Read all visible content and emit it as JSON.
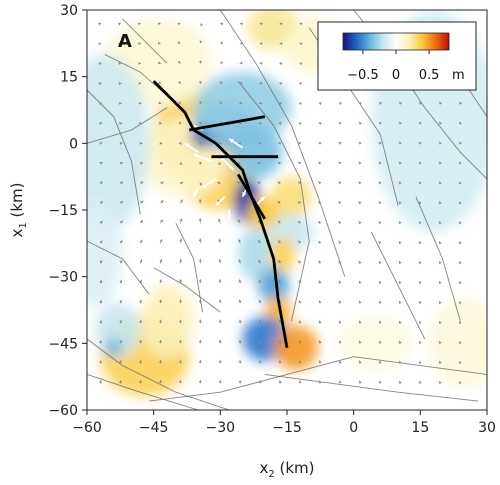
{
  "chart_data": {
    "type": "heatmap",
    "panel_label": "A",
    "xlabel": "x",
    "xlabel_sub": "2",
    "xlabel_unit": " (km)",
    "ylabel": "x",
    "ylabel_sub": "1",
    "ylabel_unit": " (km)",
    "xlim": [
      -60,
      30
    ],
    "ylim": [
      -60,
      30
    ],
    "x_ticks": [
      -60,
      -45,
      -30,
      -15,
      0,
      15,
      30
    ],
    "y_ticks": [
      30,
      15,
      0,
      -15,
      -30,
      -45,
      -60
    ],
    "x_tick_labels": [
      "−60",
      "−45",
      "−30",
      "−15",
      "0",
      "15",
      "30"
    ],
    "y_tick_labels": [
      "30",
      "15",
      "0",
      "−15",
      "−30",
      "−45",
      "−60"
    ],
    "colorbar": {
      "range": [
        -0.8,
        0.8
      ],
      "tick_values": [
        -0.5,
        0,
        0.5
      ],
      "tick_labels": [
        "−0.5",
        "0",
        "0.5"
      ],
      "unit": "m",
      "colors": [
        "#1a1380",
        "#1f64c8",
        "#5fb4dc",
        "#c6e6ee",
        "#ffffff",
        "#fbf1b8",
        "#f8c838",
        "#ef6a0e",
        "#b8100c"
      ]
    },
    "blobs": [
      {
        "x": -34,
        "y": 0,
        "rx": 4.5,
        "ry": 4.5,
        "value": 0.75
      },
      {
        "x": -31,
        "y": -4,
        "rx": 6,
        "ry": 5,
        "value": 0.55
      },
      {
        "x": -37,
        "y": 2,
        "rx": 8,
        "ry": 10,
        "value": 0.4
      },
      {
        "x": -30,
        "y": -9,
        "rx": 8,
        "ry": 6,
        "value": 0.35
      },
      {
        "x": -38,
        "y": -3,
        "rx": 10,
        "ry": 9,
        "value": 0.15
      },
      {
        "x": -34,
        "y": 1.5,
        "rx": 2.5,
        "ry": 2.5,
        "value": -0.8
      },
      {
        "x": -29,
        "y": 4,
        "rx": 7,
        "ry": 5,
        "value": -0.5
      },
      {
        "x": -25,
        "y": 8,
        "rx": 11,
        "ry": 8,
        "value": -0.3
      },
      {
        "x": -22,
        "y": -2,
        "rx": 6,
        "ry": 6,
        "value": -0.35
      },
      {
        "x": -24,
        "y": -13,
        "rx": 3,
        "ry": 5,
        "value": -0.7
      },
      {
        "x": -20,
        "y": -16,
        "rx": 4,
        "ry": 4,
        "value": 0.4
      },
      {
        "x": -14,
        "y": -12,
        "rx": 4.5,
        "ry": 4.5,
        "value": 0.3
      },
      {
        "x": -14,
        "y": -20,
        "rx": 5,
        "ry": 4,
        "value": -0.2
      },
      {
        "x": -22,
        "y": -25,
        "rx": 4,
        "ry": 6,
        "value": -0.25
      },
      {
        "x": -16,
        "y": -25,
        "rx": 3,
        "ry": 4,
        "value": 0.35
      },
      {
        "x": -18,
        "y": -32,
        "rx": 3.5,
        "ry": 4,
        "value": -0.45
      },
      {
        "x": -17,
        "y": -38,
        "rx": 3,
        "ry": 3.5,
        "value": 0.45
      },
      {
        "x": -20,
        "y": -44,
        "rx": 5,
        "ry": 5,
        "value": -0.55
      },
      {
        "x": -13,
        "y": -46,
        "rx": 5,
        "ry": 5,
        "value": 0.5
      },
      {
        "x": -47,
        "y": -48,
        "rx": 10,
        "ry": 9,
        "value": 0.35
      },
      {
        "x": -42,
        "y": -40,
        "rx": 6,
        "ry": 8,
        "value": 0.2
      },
      {
        "x": -53,
        "y": -42,
        "rx": 5,
        "ry": 6,
        "value": -0.2
      },
      {
        "x": -54,
        "y": -46,
        "rx": 2,
        "ry": 2,
        "value": -0.4
      },
      {
        "x": -44,
        "y": 18,
        "rx": 12,
        "ry": 10,
        "value": 0.12
      },
      {
        "x": -18,
        "y": 26,
        "rx": 6,
        "ry": 5,
        "value": 0.25
      },
      {
        "x": -8,
        "y": 22,
        "rx": 8,
        "ry": 6,
        "value": 0.15
      },
      {
        "x": -56,
        "y": 0,
        "rx": 10,
        "ry": 20,
        "value": -0.18
      },
      {
        "x": -58,
        "y": -25,
        "rx": 6,
        "ry": 12,
        "value": -0.12
      },
      {
        "x": 18,
        "y": 5,
        "rx": 14,
        "ry": 25,
        "value": -0.15
      },
      {
        "x": 25,
        "y": -45,
        "rx": 8,
        "ry": 10,
        "value": 0.1
      },
      {
        "x": 5,
        "y": -45,
        "rx": 8,
        "ry": 6,
        "value": 0.08
      }
    ],
    "ruptures": [
      [
        [
          -45,
          14
        ],
        [
          -38,
          7
        ],
        [
          -36,
          3
        ],
        [
          -31,
          0
        ],
        [
          -28,
          -3
        ],
        [
          -25,
          -6
        ],
        [
          -23,
          -12
        ],
        [
          -21,
          -17
        ],
        [
          -18,
          -26
        ],
        [
          -17,
          -35
        ],
        [
          -15,
          -46
        ]
      ],
      [
        [
          -37,
          3
        ],
        [
          -20,
          6
        ]
      ],
      [
        [
          -32,
          -3
        ],
        [
          -17,
          -3
        ]
      ],
      [
        [
          -26,
          -7
        ],
        [
          -20,
          -17
        ]
      ]
    ],
    "faults": [
      [
        [
          -60,
          0
        ],
        [
          -50,
          3
        ],
        [
          -42,
          8
        ]
      ],
      [
        [
          -56,
          20
        ],
        [
          -48,
          16
        ],
        [
          -40,
          9
        ]
      ],
      [
        [
          -52,
          28
        ],
        [
          -46,
          22
        ],
        [
          -42,
          18
        ]
      ],
      [
        [
          -30,
          30
        ],
        [
          -22,
          18
        ],
        [
          -14,
          4
        ],
        [
          -8,
          -12
        ],
        [
          -2,
          -30
        ]
      ],
      [
        [
          -10,
          26
        ],
        [
          -2,
          14
        ],
        [
          6,
          2
        ],
        [
          10,
          -14
        ]
      ],
      [
        [
          0,
          30
        ],
        [
          8,
          20
        ],
        [
          16,
          8
        ],
        [
          24,
          -2
        ],
        [
          30,
          -8
        ]
      ],
      [
        [
          -26,
          14
        ],
        [
          -18,
          4
        ],
        [
          -12,
          -8
        ],
        [
          -10,
          -22
        ],
        [
          -14,
          -40
        ]
      ],
      [
        [
          -60,
          -22
        ],
        [
          -52,
          -26
        ],
        [
          -46,
          -34
        ]
      ],
      [
        [
          -60,
          -44
        ],
        [
          -52,
          -50
        ],
        [
          -40,
          -56
        ],
        [
          -28,
          -60
        ]
      ],
      [
        [
          -60,
          -52
        ],
        [
          -48,
          -56
        ],
        [
          -35,
          -60
        ]
      ],
      [
        [
          -46,
          -58
        ],
        [
          -30,
          -56
        ],
        [
          -15,
          -52
        ],
        [
          0,
          -48
        ],
        [
          15,
          -50
        ],
        [
          30,
          -52
        ]
      ],
      [
        [
          -20,
          -52
        ],
        [
          -5,
          -54
        ],
        [
          10,
          -56
        ],
        [
          28,
          -58
        ]
      ],
      [
        [
          -45,
          -28
        ],
        [
          -38,
          -32
        ],
        [
          -30,
          -38
        ]
      ],
      [
        [
          4,
          -20
        ],
        [
          10,
          -32
        ],
        [
          16,
          -44
        ]
      ],
      [
        [
          14,
          -12
        ],
        [
          20,
          -26
        ],
        [
          24,
          -40
        ]
      ],
      [
        [
          -60,
          12
        ],
        [
          -54,
          6
        ],
        [
          -50,
          -4
        ],
        [
          -48,
          -16
        ]
      ],
      [
        [
          -40,
          -18
        ],
        [
          -36,
          -26
        ],
        [
          -34,
          -38
        ]
      ],
      [
        [
          20,
          22
        ],
        [
          26,
          12
        ],
        [
          30,
          6
        ]
      ]
    ],
    "arrows_white": [
      [
        -35,
        -2,
        -3,
        2
      ],
      [
        -32,
        -4,
        -4,
        1.5
      ],
      [
        -31,
        -8,
        -3,
        -2
      ],
      [
        -27,
        -6,
        -3,
        3
      ],
      [
        -29,
        -12,
        -2,
        -2
      ],
      [
        -35,
        -10,
        -1,
        -2
      ],
      [
        -36,
        4,
        2,
        -1
      ],
      [
        -25,
        -1,
        -3,
        2
      ],
      [
        -24,
        -10,
        -1,
        -2
      ],
      [
        -22,
        -14,
        2,
        2
      ],
      [
        -28,
        -15,
        0,
        -2
      ]
    ]
  }
}
